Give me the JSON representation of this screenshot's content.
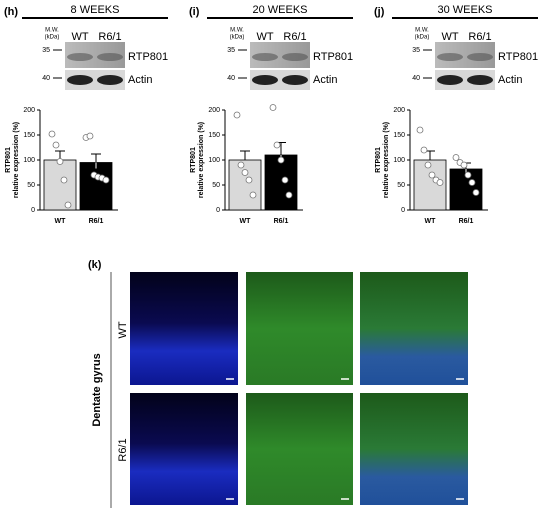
{
  "chart_data": [
    {
      "type": "bar",
      "panel": "(h)",
      "title": "8 WEEKS",
      "ylabel": "RTP801",
      "ylabel2": "relative expression (%)",
      "categories": [
        "WT",
        "R6/1"
      ],
      "values": [
        100,
        95
      ],
      "errors": [
        18,
        17
      ],
      "points": [
        [
          152,
          130,
          97,
          60,
          10
        ],
        [
          145,
          148,
          70,
          66,
          64,
          60
        ]
      ],
      "colors": [
        "#d9d9d9",
        "#000000"
      ],
      "ylim": [
        0,
        200
      ],
      "yticks": [
        0,
        50,
        100,
        150,
        200
      ]
    },
    {
      "type": "bar",
      "panel": "(i)",
      "title": "20 WEEKS",
      "ylabel": "RTP801",
      "ylabel2": "relative expression (%)",
      "categories": [
        "WT",
        "R6/1"
      ],
      "values": [
        100,
        110
      ],
      "errors": [
        18,
        25
      ],
      "points": [
        [
          190,
          90,
          75,
          60,
          30
        ],
        [
          205,
          130,
          100,
          60,
          30
        ]
      ],
      "colors": [
        "#d9d9d9",
        "#000000"
      ],
      "ylim": [
        0,
        200
      ],
      "yticks": [
        0,
        50,
        100,
        150,
        200
      ]
    },
    {
      "type": "bar",
      "panel": "(j)",
      "title": "30 WEEKS",
      "ylabel": "RTP801",
      "ylabel2": "relative expression (%)",
      "categories": [
        "WT",
        "R6/1"
      ],
      "values": [
        100,
        82
      ],
      "errors": [
        18,
        12
      ],
      "points": [
        [
          160,
          120,
          90,
          70,
          60,
          55
        ],
        [
          105,
          95,
          90,
          70,
          55,
          35
        ]
      ],
      "colors": [
        "#d9d9d9",
        "#000000"
      ],
      "ylim": [
        0,
        200
      ],
      "yticks": [
        0,
        50,
        100,
        150,
        200
      ]
    }
  ],
  "blots": [
    {
      "mw_label": "M.W.",
      "mw_unit": "(kDa)",
      "markers": [
        35,
        40
      ],
      "lanes": [
        "WT",
        "R6/1"
      ],
      "bands": [
        "RTP801",
        "Actin"
      ]
    },
    {
      "mw_label": "M.W.",
      "mw_unit": "(kDa)",
      "markers": [
        35,
        40
      ],
      "lanes": [
        "WT",
        "R6/1"
      ],
      "bands": [
        "RTP801",
        "Actin"
      ]
    },
    {
      "mw_label": "M.W.",
      "mw_unit": "(kDa)",
      "markers": [
        35,
        40
      ],
      "lanes": [
        "WT",
        "R6/1"
      ],
      "bands": [
        "RTP801",
        "Actin"
      ]
    }
  ],
  "microscopy": {
    "panel": "(k)",
    "region": "Dentate gyrus",
    "rows": [
      "WT",
      "R6/1"
    ]
  }
}
